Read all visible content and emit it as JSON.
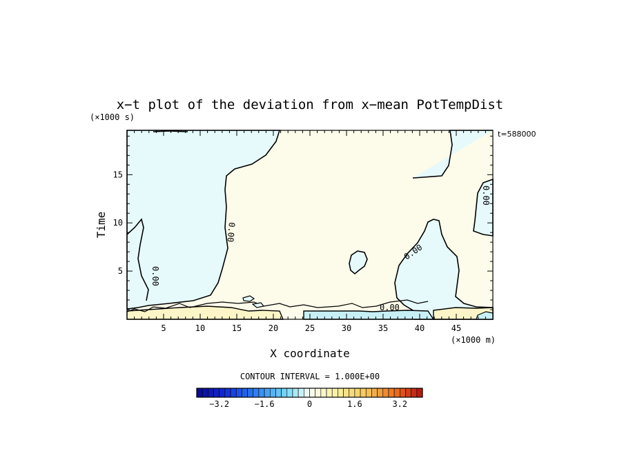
{
  "chart_data": {
    "type": "heatmap",
    "title": "x−t plot of the deviation from x−mean PotTempDist",
    "xlabel": "X coordinate",
    "ylabel": "Time",
    "x_unit": "(×1000 m)",
    "y_unit": "(×1000 s)",
    "time_stamp": "t=588000",
    "xlim": [
      0,
      50
    ],
    "ylim": [
      0,
      19.6
    ],
    "x_ticks": [
      "5",
      "10",
      "15",
      "20",
      "25",
      "30",
      "35",
      "40",
      "45"
    ],
    "y_ticks": [
      "5",
      "10",
      "15"
    ],
    "contour_label": "0.00",
    "contour_interval_text": "CONTOUR INTERVAL = 1.000E+00",
    "colorbar": {
      "ticks": [
        "−3.2",
        "−1.6",
        "0",
        "1.6",
        "3.2"
      ],
      "range": [
        -4,
        4
      ],
      "step": 0.2
    },
    "regions": [
      {
        "sign": "negative",
        "value": -0.3,
        "color": "#e6fafc",
        "location": "left side, x 0–13, t 2–20"
      },
      {
        "sign": "positive",
        "value": 0.3,
        "color": "#fdfbea",
        "location": "center, x 13–45, t 1–20"
      },
      {
        "sign": "negative",
        "value": -0.3,
        "color": "#e6fafc",
        "location": "right side, x 38–50, t 1–10"
      },
      {
        "sign": "negative",
        "value": -0.3,
        "color": "#e6fafc",
        "location": "upper right, x 44–50, t 6–20"
      },
      {
        "sign": "negative",
        "value": -0.3,
        "color": "#e6fafc",
        "location": "small patch near x 31, t 6"
      }
    ]
  }
}
